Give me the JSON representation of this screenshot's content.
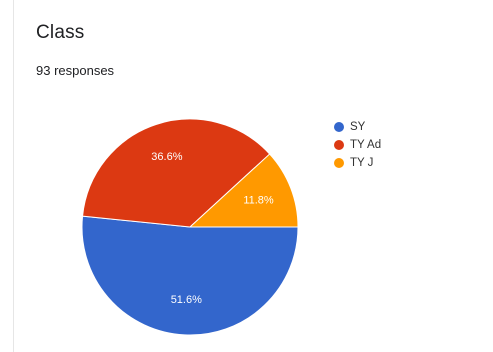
{
  "header": {
    "title": "Class",
    "subtitle": "93 responses"
  },
  "chart_data": {
    "type": "pie",
    "title": "Class",
    "subtitle": "93 responses",
    "legend_position": "right",
    "start_angle_deg": 0,
    "direction": "clockwise-from-3-oclock",
    "slices": [
      {
        "label": "SY",
        "value": 51.6,
        "display": "51.6%",
        "color": "#3366cc"
      },
      {
        "label": "TY Ad",
        "value": 36.6,
        "display": "36.6%",
        "color": "#dc3912"
      },
      {
        "label": "TY J",
        "value": 11.8,
        "display": "11.8%",
        "color": "#ff9900"
      }
    ]
  }
}
